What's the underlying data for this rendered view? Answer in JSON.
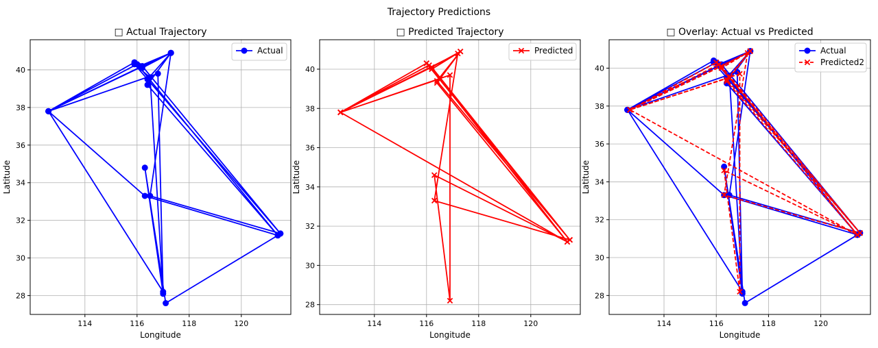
{
  "figure": {
    "title": "Trajectory Predictions"
  },
  "chart_data": [
    {
      "type": "line",
      "title": "□ Actual Trajectory",
      "xlabel": "Longitude",
      "ylabel": "Latitude",
      "xlim": [
        111.9,
        121.9
      ],
      "ylim": [
        27.0,
        41.6
      ],
      "xticks": [
        114,
        116,
        118,
        120
      ],
      "yticks": [
        28,
        30,
        32,
        34,
        36,
        38,
        40
      ],
      "grid": true,
      "legend": "top-right",
      "series": [
        {
          "name": "Actual",
          "color": "#0000ff",
          "marker": "circle",
          "linestyle": "solid",
          "x": [
            112.6,
            115.9,
            116.1,
            117.3,
            116.4,
            121.4,
            116.0,
            112.6,
            117.3,
            116.5,
            121.5,
            116.2,
            112.6,
            116.8,
            117.0,
            116.3,
            117.1,
            121.4,
            116.3,
            112.6,
            117.0,
            116.5,
            115.9,
            121.5,
            116.4,
            117.3,
            116.2
          ],
          "y": [
            37.8,
            40.4,
            40.2,
            40.9,
            39.2,
            31.2,
            40.3,
            37.8,
            40.9,
            33.3,
            31.3,
            40.2,
            37.8,
            39.8,
            28.1,
            34.8,
            27.6,
            31.2,
            33.3,
            37.8,
            28.2,
            39.6,
            40.3,
            31.3,
            39.5,
            40.9,
            40.1
          ]
        }
      ]
    },
    {
      "type": "line",
      "title": "□ Predicted Trajectory",
      "xlabel": "Longitude",
      "ylabel": "Latitude",
      "xlim": [
        111.9,
        121.9
      ],
      "ylim": [
        27.5,
        41.5
      ],
      "xticks": [
        114,
        116,
        118,
        120
      ],
      "yticks": [
        28,
        30,
        32,
        34,
        36,
        38,
        40
      ],
      "grid": true,
      "legend": "top-right",
      "series": [
        {
          "name": "Predicted",
          "color": "#ff0000",
          "marker": "x",
          "linestyle": "solid",
          "x": [
            112.7,
            116.0,
            116.2,
            117.3,
            116.4,
            121.4,
            116.1,
            112.7,
            117.2,
            116.3,
            121.5,
            116.2,
            112.7,
            116.9,
            116.9,
            116.3,
            121.4,
            112.7,
            116.5,
            116.0,
            121.5,
            116.4,
            117.3,
            116.2
          ],
          "y": [
            37.8,
            40.3,
            40.1,
            40.9,
            39.3,
            31.2,
            40.2,
            37.8,
            40.8,
            33.3,
            31.3,
            40.1,
            37.8,
            39.7,
            28.2,
            34.6,
            31.2,
            37.8,
            39.5,
            40.3,
            31.3,
            39.4,
            40.9,
            40.0
          ]
        }
      ]
    },
    {
      "type": "line",
      "title": "□ Overlay: Actual vs Predicted",
      "xlabel": "Longitude",
      "ylabel": "Latitude",
      "xlim": [
        111.9,
        121.9
      ],
      "ylim": [
        27.0,
        41.5
      ],
      "xticks": [
        114,
        116,
        118,
        120
      ],
      "yticks": [
        28,
        30,
        32,
        34,
        36,
        38,
        40
      ],
      "grid": true,
      "legend": "top-right",
      "series": [
        {
          "name": "Actual",
          "color": "#0000ff",
          "marker": "circle",
          "linestyle": "solid",
          "x": [
            112.6,
            115.9,
            116.1,
            117.3,
            116.4,
            121.4,
            116.0,
            112.6,
            117.3,
            116.5,
            121.5,
            116.2,
            112.6,
            116.8,
            117.0,
            116.3,
            117.1,
            121.4,
            116.3,
            112.6,
            117.0,
            116.5,
            115.9,
            121.5,
            116.4,
            117.3,
            116.2
          ],
          "y": [
            37.8,
            40.4,
            40.2,
            40.9,
            39.2,
            31.2,
            40.3,
            37.8,
            40.9,
            33.3,
            31.3,
            40.2,
            37.8,
            39.8,
            28.1,
            34.8,
            27.6,
            31.2,
            33.3,
            37.8,
            28.2,
            39.6,
            40.3,
            31.3,
            39.5,
            40.9,
            40.1
          ]
        },
        {
          "name": "Predicted2",
          "color": "#ff0000",
          "marker": "x",
          "linestyle": "dashed",
          "x": [
            112.7,
            116.0,
            116.2,
            117.3,
            116.4,
            121.4,
            116.1,
            112.7,
            117.2,
            116.3,
            121.5,
            116.2,
            112.7,
            116.9,
            116.9,
            116.3,
            121.4,
            112.7,
            116.5,
            116.0,
            121.5,
            116.4,
            117.3,
            116.2
          ],
          "y": [
            37.8,
            40.3,
            40.1,
            40.9,
            39.3,
            31.2,
            40.2,
            37.8,
            40.8,
            33.3,
            31.3,
            40.1,
            37.8,
            39.7,
            28.2,
            34.6,
            31.2,
            37.8,
            39.5,
            40.3,
            31.3,
            39.4,
            40.9,
            40.0
          ]
        }
      ]
    }
  ]
}
